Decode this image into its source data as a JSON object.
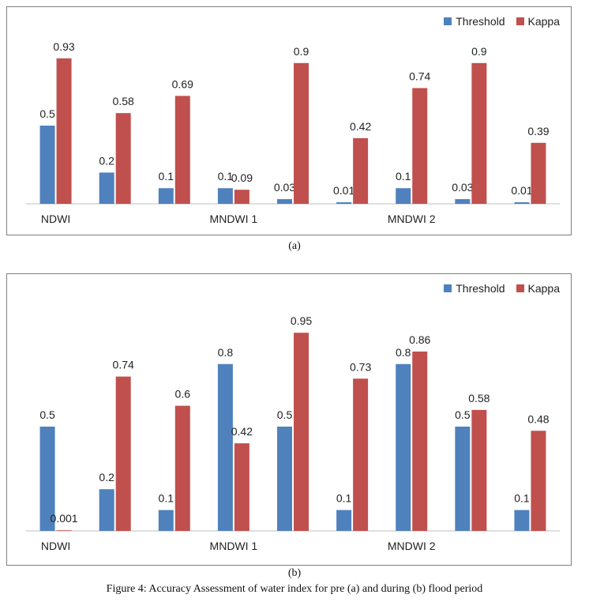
{
  "colors": {
    "threshold": "#4f81bd",
    "kappa": "#c0504d",
    "axis": "#bfbfbf"
  },
  "legend": {
    "threshold": "Threshold",
    "kappa": "Kappa"
  },
  "captions": {
    "a": "(a)",
    "b": "(b)",
    "figure": "Figure 4: Accuracy Assessment of water index for pre (a) and during (b) flood period"
  },
  "chart_data": [
    {
      "type": "bar",
      "panel": "(a)",
      "ylim": [
        0,
        1
      ],
      "category_labels": [
        {
          "group": 0,
          "label": "NDWI"
        },
        {
          "group": 3,
          "label": "MNDWI 1"
        },
        {
          "group": 6,
          "label": "MNDWI 2"
        }
      ],
      "series": [
        {
          "name": "Threshold",
          "values": [
            0.5,
            0.2,
            0.1,
            0.1,
            0.03,
            0.01,
            0.1,
            0.03,
            0.01
          ]
        },
        {
          "name": "Kappa",
          "values": [
            0.93,
            0.58,
            0.69,
            0.09,
            0.9,
            0.42,
            0.74,
            0.9,
            0.39
          ]
        }
      ],
      "labels": {
        "Threshold": [
          "0.5",
          "0.2",
          "0.1",
          "0.1",
          "0.03",
          "0.01",
          "0.1",
          "0.03",
          "0.01"
        ],
        "Kappa": [
          "0.93",
          "0.58",
          "0.69",
          "0.09",
          "0.9",
          "0.42",
          "0.74",
          "0.9",
          "0.39"
        ]
      },
      "grid": false,
      "legend_position": "top-right"
    },
    {
      "type": "bar",
      "panel": "(b)",
      "ylim": [
        0,
        1
      ],
      "category_labels": [
        {
          "group": 0,
          "label": "NDWI"
        },
        {
          "group": 3,
          "label": "MNDWI 1"
        },
        {
          "group": 6,
          "label": "MNDWI 2"
        }
      ],
      "series": [
        {
          "name": "Threshold",
          "values": [
            0.5,
            0.2,
            0.1,
            0.8,
            0.5,
            0.1,
            0.8,
            0.5,
            0.1
          ]
        },
        {
          "name": "Kappa",
          "values": [
            0.001,
            0.74,
            0.6,
            0.42,
            0.95,
            0.73,
            0.86,
            0.58,
            0.48
          ]
        }
      ],
      "labels": {
        "Threshold": [
          "0.5",
          "0.2",
          "0.1",
          "0.8",
          "0.5",
          "0.1",
          "0.8",
          "0.5",
          "0.1"
        ],
        "Kappa": [
          "0.001",
          "0.74",
          "0.6",
          "0.42",
          "0.95",
          "0.73",
          "0.86",
          "0.58",
          "0.48"
        ]
      },
      "grid": false,
      "legend_position": "top-right"
    }
  ]
}
